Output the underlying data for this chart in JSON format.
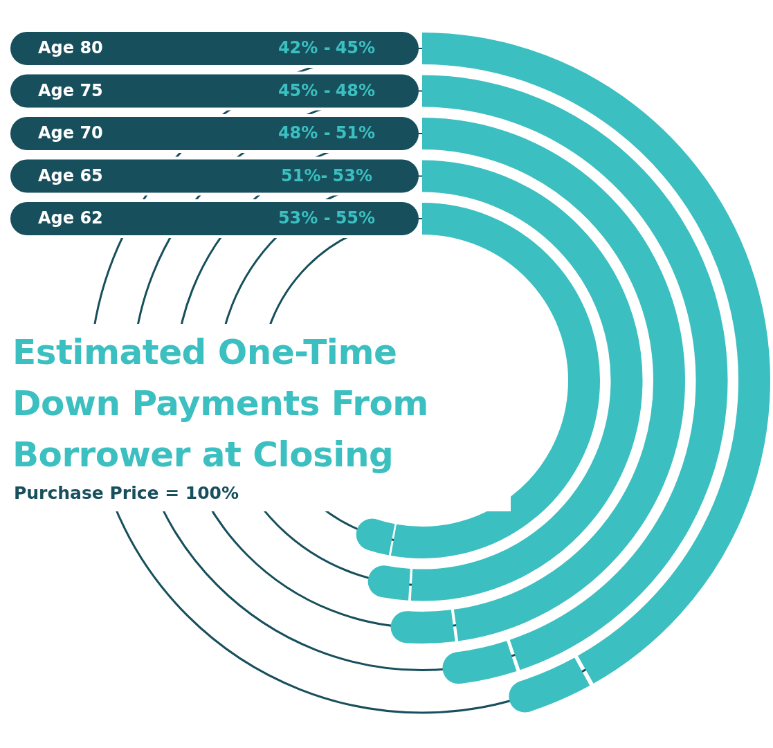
{
  "chart_data": {
    "type": "other",
    "title": "Estimated One-Time Down Payments From Borrower at Closing",
    "subtitle": "Purchase Price = 100%",
    "categories": [
      "Age 80",
      "Age 75",
      "Age 70",
      "Age 65",
      "Age 62"
    ],
    "series": [
      {
        "values": [
          42,
          45,
          48,
          51,
          53
        ],
        "value_labels": [
          "42% -",
          "45% -",
          "48% -",
          "51%-",
          "53% -"
        ]
      },
      {
        "values": [
          45,
          48,
          51,
          53,
          55
        ],
        "value_labels": [
          "45%",
          "48%",
          "51%",
          "53%",
          "55%"
        ]
      }
    ]
  }
}
